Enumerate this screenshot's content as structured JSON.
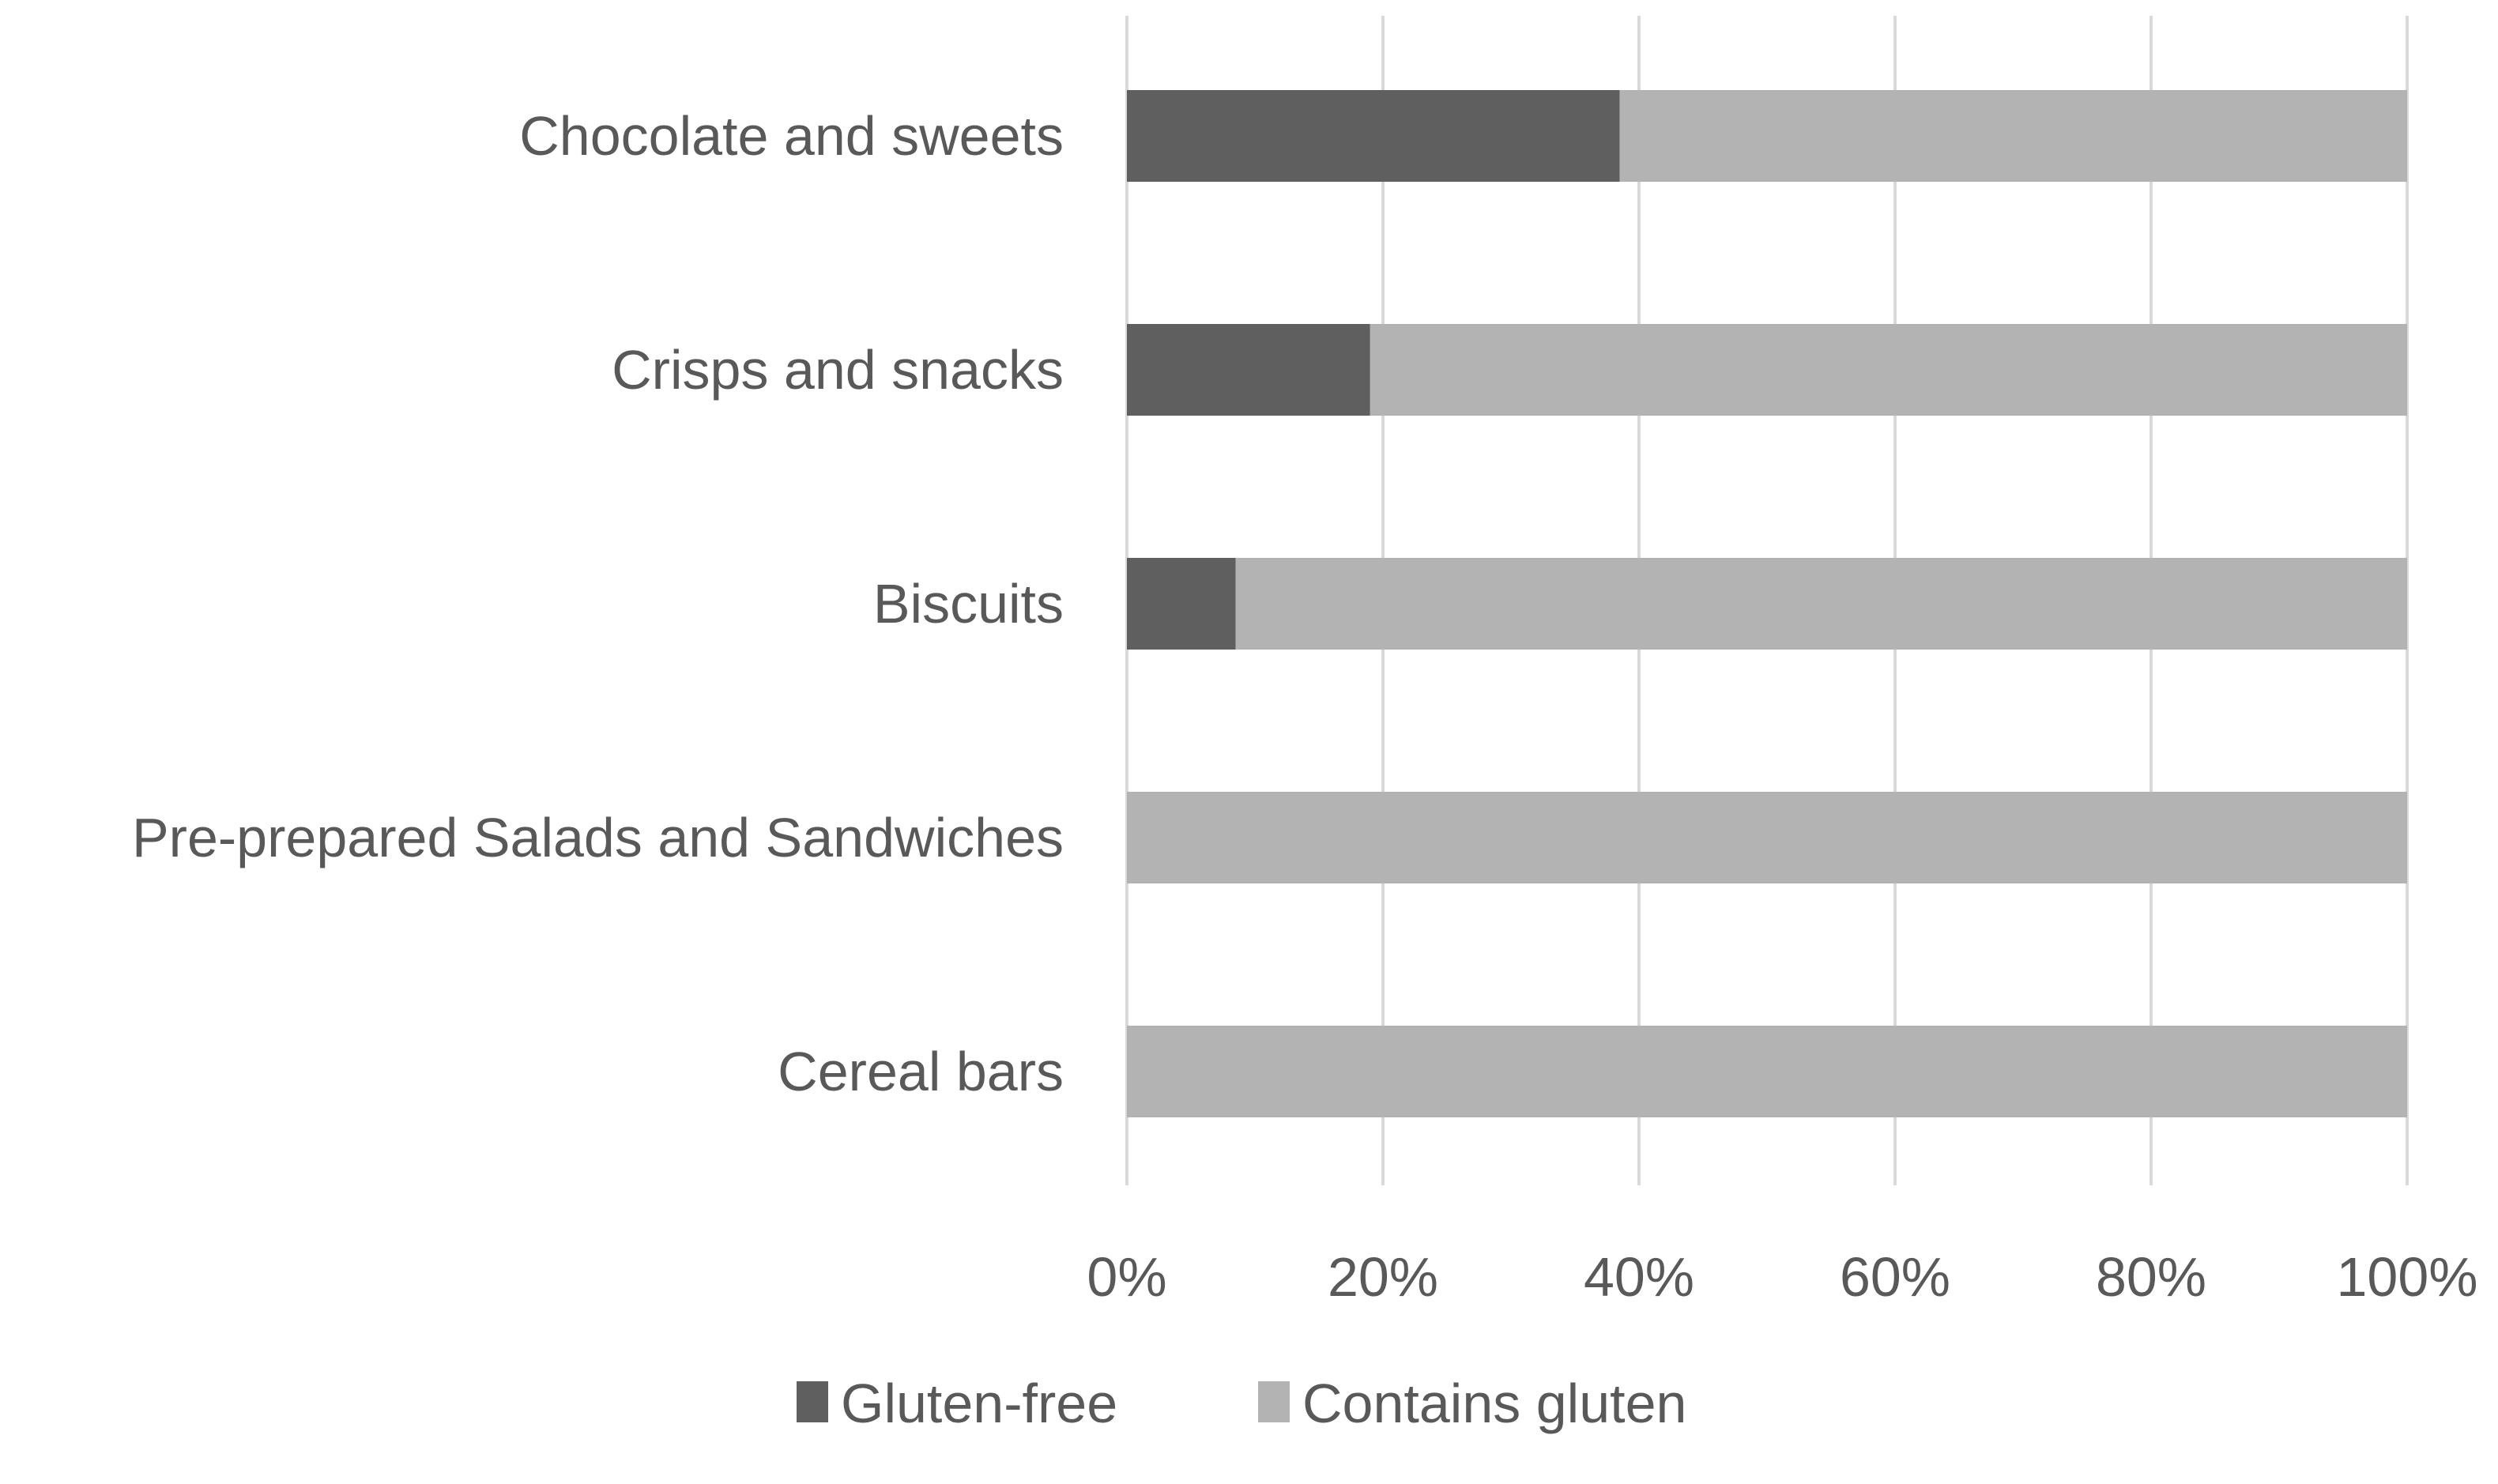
{
  "chart_data": {
    "type": "bar",
    "orientation": "horizontal",
    "stacked": true,
    "normalized": true,
    "categories": [
      "Chocolate and sweets",
      "Crisps and snacks",
      "Biscuits",
      "Pre-prepared Salads and Sandwiches",
      "Cereal bars"
    ],
    "series": [
      {
        "name": "Gluten-free",
        "color": "#5f5f5f",
        "values": [
          38.5,
          19,
          8.5,
          0,
          0
        ]
      },
      {
        "name": "Contains gluten",
        "color": "#b3b3b3",
        "values": [
          61.5,
          81,
          91.5,
          100,
          100
        ]
      }
    ],
    "xlim": [
      0,
      100
    ],
    "x_ticks": [
      "0%",
      "20%",
      "40%",
      "60%",
      "80%",
      "100%"
    ],
    "grid": true,
    "legend_position": "bottom"
  }
}
